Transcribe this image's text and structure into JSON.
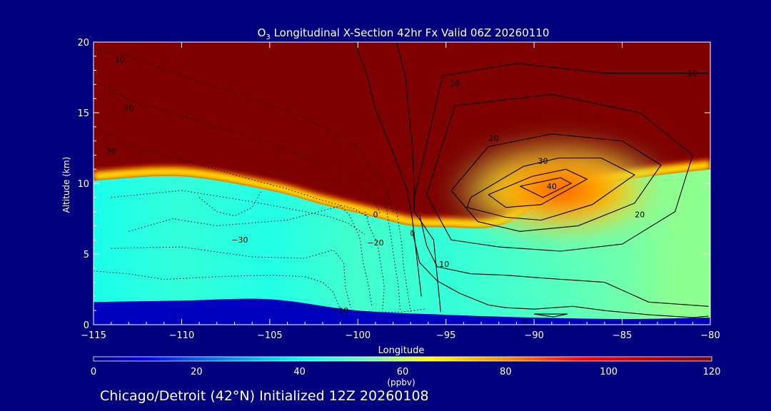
{
  "chart_data": {
    "type": "heatmap",
    "title_prefix": "O",
    "title_sub": "3",
    "title_rest": " Longitudinal X-Section 42hr  Fx Valid 06Z 20260110",
    "xlabel": "Longitude",
    "ylabel": "Altitude (km)",
    "xlim": [
      -115,
      -80
    ],
    "ylim": [
      0,
      20
    ],
    "x_ticks": [
      -115,
      -110,
      -105,
      -100,
      -95,
      -90,
      -85,
      -80
    ],
    "x_tick_labels": [
      "−115",
      "−110",
      "−105",
      "−100",
      "−95",
      "−90",
      "−85",
      "−80"
    ],
    "y_ticks": [
      0,
      5,
      10,
      15,
      20
    ],
    "y_tick_labels": [
      "0",
      "5",
      "10",
      "15",
      "20"
    ],
    "colorbar": {
      "min": 0,
      "max": 120,
      "label": "(ppbv)",
      "ticks": [
        0,
        20,
        40,
        60,
        80,
        100,
        120
      ],
      "tick_labels": [
        "0",
        "20",
        "40",
        "60",
        "80",
        "100",
        "120"
      ],
      "stops": [
        {
          "v": 0,
          "color": "#00007e"
        },
        {
          "v": 10,
          "color": "#0000ff"
        },
        {
          "v": 25,
          "color": "#0082ff"
        },
        {
          "v": 40,
          "color": "#00ffff"
        },
        {
          "v": 55,
          "color": "#80ffa0"
        },
        {
          "v": 65,
          "color": "#ffff00"
        },
        {
          "v": 80,
          "color": "#ff9000"
        },
        {
          "v": 95,
          "color": "#ff0000"
        },
        {
          "v": 120,
          "color": "#7e0000"
        }
      ]
    },
    "tropopause_lon": [
      -115,
      -110,
      -105,
      -102,
      -99,
      -97,
      -95,
      -92,
      -89,
      -85,
      -80
    ],
    "tropopause_km": [
      10.5,
      10.8,
      9.8,
      8.8,
      7.9,
      7.3,
      7.2,
      7.3,
      9.2,
      10.5,
      11.3
    ],
    "surface_lon": [
      -115,
      -110,
      -105,
      -100,
      -95,
      -90,
      -85,
      -80
    ],
    "surface_km": [
      1.6,
      1.7,
      1.8,
      1.0,
      0.7,
      0.5,
      0.4,
      0.5
    ],
    "background_field": [
      {
        "lon": -115,
        "alt": 6,
        "ppbv": 43
      },
      {
        "lon": -110,
        "alt": 6.5,
        "ppbv": 46
      },
      {
        "lon": -105,
        "alt": 6,
        "ppbv": 44
      },
      {
        "lon": -100,
        "alt": 5,
        "ppbv": 48
      },
      {
        "lon": -95,
        "alt": 4.5,
        "ppbv": 46
      },
      {
        "lon": -90,
        "alt": 4,
        "ppbv": 49
      },
      {
        "lon": -85,
        "alt": 5,
        "ppbv": 53
      },
      {
        "lon": -82,
        "alt": 6,
        "ppbv": 56
      }
    ],
    "ozone_maximum": {
      "lon": -88.5,
      "alt": 9.5,
      "ppbv": 90
    },
    "contour_labels": [
      {
        "text": "10",
        "lon": -113.5,
        "alt": 18.8
      },
      {
        "text": "20",
        "lon": -113,
        "alt": 15.3
      },
      {
        "text": "30",
        "lon": -114,
        "alt": 12.3
      },
      {
        "text": "−30",
        "lon": -106.7,
        "alt": 6
      },
      {
        "text": "−20",
        "lon": -99.0,
        "alt": 5.8
      },
      {
        "text": "−10",
        "lon": -101,
        "alt": 1.0
      },
      {
        "text": "0",
        "lon": -96.9,
        "alt": 6.5
      },
      {
        "text": "0",
        "lon": -99.0,
        "alt": 7.8
      },
      {
        "text": "0",
        "lon": -90.5,
        "alt": 0.2
      },
      {
        "text": "10",
        "lon": -95.1,
        "alt": 4.3
      },
      {
        "text": "10",
        "lon": -94.5,
        "alt": 17.1
      },
      {
        "text": "10",
        "lon": -81.0,
        "alt": 17.8
      },
      {
        "text": "20",
        "lon": -92.3,
        "alt": 13.2
      },
      {
        "text": "20",
        "lon": -84.0,
        "alt": 7.8
      },
      {
        "text": "30",
        "lon": -89.5,
        "alt": 11.6
      },
      {
        "text": "40",
        "lon": -89.0,
        "alt": 9.8
      }
    ],
    "solid_contours": [
      {
        "lon": [
          -93.6,
          -90.6,
          -88.6,
          -86.2,
          -84.3,
          -86.7,
          -89.6,
          -91.6,
          -93.8,
          -93.6
        ],
        "alt": [
          9.0,
          11.2,
          11.8,
          11.8,
          10.6,
          8.5,
          7.4,
          7.6,
          8.3,
          9.0
        ]
      },
      {
        "lon": [
          -92.6,
          -90.1,
          -88.2,
          -87.0,
          -89.6,
          -91.6,
          -92.6
        ],
        "alt": [
          9.2,
          10.5,
          11.0,
          10.3,
          8.5,
          8.3,
          9.2
        ]
      },
      {
        "lon": [
          -90.8,
          -88.5,
          -87.9,
          -89.5,
          -90.8
        ],
        "alt": [
          9.8,
          10.4,
          10.0,
          9.0,
          9.8
        ]
      },
      {
        "lon": [
          -94.7,
          -92.6,
          -89.0,
          -85.0,
          -82.8,
          -84.3,
          -87.5,
          -90.8,
          -93.2,
          -94.7
        ],
        "alt": [
          9.5,
          12.6,
          13.5,
          13.0,
          11.3,
          8.6,
          7.0,
          6.6,
          7.3,
          9.5
        ]
      },
      {
        "lon": [
          -96.1,
          -94.5,
          -89.0,
          -84.0,
          -81.0,
          -82.0,
          -85.0,
          -88.5,
          -92.0,
          -94.7,
          -96.1
        ],
        "alt": [
          9.2,
          15.5,
          16.3,
          15.0,
          12.0,
          8.0,
          5.7,
          5.2,
          5.5,
          6.0,
          9.2
        ]
      },
      {
        "lon": [
          -96.8,
          -95.2,
          -91.0,
          -86.0,
          -82.0,
          -80.1
        ],
        "alt": [
          9.0,
          17.6,
          18.5,
          17.8,
          17.8,
          17.8
        ]
      },
      {
        "lon": [
          -96.5,
          -96.1,
          -95.5,
          -93.6,
          -91.6,
          -89.5,
          -86.0,
          -83.5,
          -80.1
        ],
        "alt": [
          7.8,
          5.6,
          4.1,
          3.6,
          3.5,
          3.3,
          3.0,
          1.6,
          1.3
        ]
      },
      {
        "lon": [
          -96.9,
          -96.5,
          -95.5,
          -94.2,
          -92.6,
          -91.6,
          -90.0,
          -87.8,
          -86.0,
          -83.5,
          -81.0,
          -80.1
        ],
        "alt": [
          6.6,
          4.4,
          3.1,
          2.2,
          1.4,
          1.2,
          1.1,
          1.3,
          1.0,
          0.7,
          0.5,
          0.6
        ]
      },
      {
        "lon": [
          -90.0,
          -88.1,
          -88.9,
          -90.0
        ],
        "alt": [
          0.75,
          0.75,
          0.55,
          0.75
        ]
      },
      {
        "lon": [
          -97.8,
          -97.3,
          -96.9,
          -96.8,
          -96.8,
          -95.7,
          -95.3
        ],
        "alt": [
          20,
          17.5,
          12.5,
          9.5,
          8.0,
          6.0,
          0.9
        ]
      },
      {
        "lon": [
          -100.2,
          -99.5,
          -99.0,
          -98.1,
          -97.2,
          -96.9,
          -96.4
        ],
        "alt": [
          20,
          17.8,
          15.2,
          12.5,
          9.5,
          7.4,
          2.0
        ]
      }
    ],
    "dotted_contours": [
      {
        "lon": [
          -115,
          -113,
          -110,
          -107,
          -104,
          -102,
          -100,
          -98.5,
          -98.0
        ],
        "alt": [
          19.5,
          19.0,
          17.6,
          16.4,
          15.2,
          14.0,
          12.5,
          10.0,
          8.0
        ]
      },
      {
        "lon": [
          -115,
          -113,
          -110,
          -107,
          -104,
          -102,
          -100,
          -99.1,
          -98.7
        ],
        "alt": [
          17.3,
          15.9,
          14.8,
          13.6,
          12.4,
          11.3,
          10.0,
          8.8,
          7.8
        ]
      },
      {
        "lon": [
          -115,
          -113,
          -110,
          -107,
          -104,
          -102,
          -100.2,
          -99.4
        ],
        "alt": [
          14.0,
          12.7,
          11.7,
          10.6,
          9.6,
          8.8,
          8.2,
          7.6
        ]
      },
      {
        "lon": [
          -114,
          -110,
          -106,
          -103,
          -101.5,
          -100.6,
          -99.6
        ],
        "alt": [
          9.0,
          9.5,
          8.7,
          8.0,
          7.6,
          7.2,
          6.4
        ]
      },
      {
        "lon": [
          -113,
          -110.5,
          -108,
          -104,
          -101,
          -100.5,
          -99.9,
          -99.7,
          -99.4,
          -99.2
        ],
        "alt": [
          6.6,
          7.5,
          7.0,
          7.4,
          8.4,
          7.8,
          6.2,
          4.4,
          2.8,
          1.3
        ]
      },
      {
        "lon": [
          -109,
          -108,
          -107,
          -106,
          -105.5
        ],
        "alt": [
          9.0,
          8.0,
          7.7,
          8.3,
          9.4
        ]
      },
      {
        "lon": [
          -114,
          -110,
          -106,
          -103,
          -101.4,
          -100.8,
          -100.7,
          -100.4
        ],
        "alt": [
          5.4,
          5.5,
          4.8,
          4.7,
          5.3,
          4.4,
          2.6,
          1.2
        ]
      },
      {
        "lon": [
          -115,
          -113,
          -111,
          -108,
          -105,
          -103,
          -102,
          -101.4,
          -101.0
        ],
        "alt": [
          3.8,
          3.6,
          3.2,
          3.4,
          3.5,
          3.4,
          3.0,
          2.3,
          1.1
        ]
      },
      {
        "lon": [
          -105,
          -103,
          -101,
          -99,
          -97.5,
          -96.2
        ],
        "alt": [
          1.5,
          1.2,
          1.0,
          0.9,
          0.9,
          1.1
        ]
      },
      {
        "lon": [
          -99.6,
          -99.3,
          -98.9,
          -98.7,
          -98.5,
          -98.6
        ],
        "alt": [
          8.0,
          6.8,
          5.8,
          4.3,
          2.7,
          1.1
        ]
      },
      {
        "lon": [
          -98.5,
          -98.3,
          -98.1,
          -97.9,
          -97.7,
          -97.6
        ],
        "alt": [
          9.0,
          7.6,
          6.0,
          4.3,
          2.7,
          1.0
        ]
      },
      {
        "lon": [
          -97.9,
          -97.7,
          -97.5,
          -97.4,
          -97.2,
          -97.0
        ],
        "alt": [
          8.6,
          7.3,
          5.6,
          4.0,
          2.5,
          0.9
        ]
      }
    ]
  },
  "footer_text": "Chicago/Detroit (42°N) Initialized 12Z 20260108"
}
